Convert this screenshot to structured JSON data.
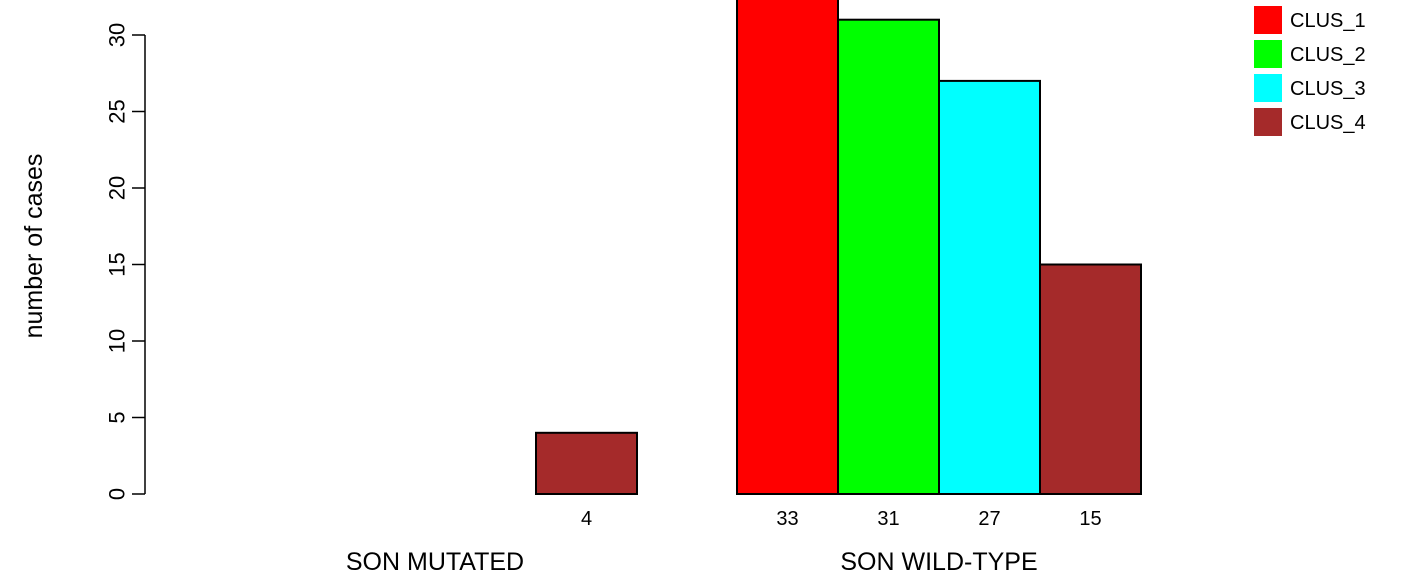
{
  "chart_data": {
    "type": "bar",
    "title": "",
    "ylabel": "number of cases",
    "xlabel": "",
    "ylim": [
      0,
      33
    ],
    "yticks": [
      "0",
      "5",
      "10",
      "15",
      "20",
      "25",
      "30"
    ],
    "groups": [
      "SON MUTATED",
      "SON WILD-TYPE"
    ],
    "series": [
      {
        "name": "CLUS_1",
        "color": "#ff0000",
        "values": [
          0,
          33
        ]
      },
      {
        "name": "CLUS_2",
        "color": "#00ff00",
        "values": [
          0,
          31
        ]
      },
      {
        "name": "CLUS_3",
        "color": "#00ffff",
        "values": [
          0,
          27
        ]
      },
      {
        "name": "CLUS_4",
        "color": "#a52a2a",
        "values": [
          4,
          15
        ]
      }
    ],
    "data_labels": [
      [
        "",
        "",
        "",
        "4"
      ],
      [
        "33",
        "31",
        "27",
        "15"
      ]
    ],
    "legend_position": "top-right",
    "grid": false
  }
}
